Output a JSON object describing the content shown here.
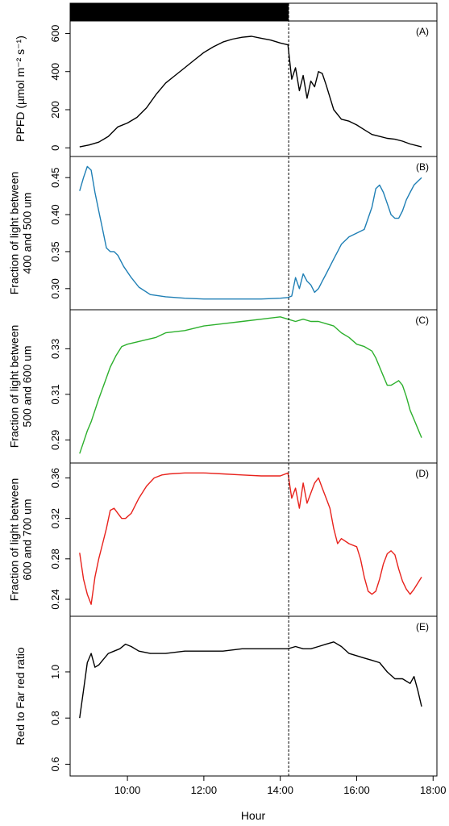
{
  "chart_data": {
    "type": "line",
    "xlabel": "Hour",
    "x_ticks": [
      "10:00",
      "12:00",
      "14:00",
      "16:00",
      "18:00"
    ],
    "x_tick_values": [
      10,
      12,
      14,
      16,
      18
    ],
    "xlim": [
      8.5,
      18.1
    ],
    "divider_x": 14.22,
    "top_bar": {
      "x_range": [
        8.5,
        14.22
      ],
      "colors": {
        "filled": "#000000",
        "empty": "#ffffff"
      }
    },
    "panels": [
      {
        "label": "(A)",
        "ylabel": "PPFD (µmol m⁻² s⁻¹)",
        "ylim": [
          -20,
          640
        ],
        "yticks": [
          0,
          200,
          400,
          600
        ],
        "ytick_labels": [
          "0",
          "200",
          "400",
          "600"
        ],
        "color": "#000000",
        "x": [
          8.75,
          9.0,
          9.25,
          9.5,
          9.75,
          10.0,
          10.25,
          10.5,
          10.75,
          11.0,
          11.25,
          11.5,
          11.75,
          12.0,
          12.25,
          12.5,
          12.75,
          13.0,
          13.25,
          13.5,
          13.75,
          14.0,
          14.2,
          14.3,
          14.4,
          14.5,
          14.6,
          14.7,
          14.8,
          14.9,
          15.0,
          15.1,
          15.2,
          15.4,
          15.6,
          15.8,
          16.0,
          16.2,
          16.4,
          16.6,
          16.8,
          17.0,
          17.2,
          17.4,
          17.7
        ],
        "y": [
          5,
          15,
          30,
          60,
          110,
          130,
          160,
          210,
          280,
          340,
          380,
          420,
          460,
          500,
          530,
          555,
          570,
          580,
          585,
          575,
          565,
          550,
          540,
          360,
          420,
          300,
          380,
          260,
          350,
          320,
          400,
          390,
          330,
          200,
          150,
          140,
          120,
          95,
          70,
          60,
          50,
          45,
          35,
          20,
          5
        ]
      },
      {
        "label": "(B)",
        "ylabel": "Fraction of light between\n400 and 500 um",
        "ylim": [
          0.278,
          0.472
        ],
        "yticks": [
          0.3,
          0.35,
          0.4,
          0.45
        ],
        "ytick_labels": [
          "0.30",
          "0.35",
          "0.40",
          "0.45"
        ],
        "color": "#1f7fb5",
        "x": [
          8.75,
          8.85,
          8.95,
          9.05,
          9.15,
          9.25,
          9.35,
          9.45,
          9.55,
          9.65,
          9.75,
          9.9,
          10.1,
          10.3,
          10.6,
          11.0,
          11.5,
          12.0,
          12.5,
          13.0,
          13.5,
          14.0,
          14.2,
          14.3,
          14.4,
          14.5,
          14.6,
          14.7,
          14.8,
          14.9,
          15.0,
          15.1,
          15.2,
          15.3,
          15.4,
          15.5,
          15.6,
          15.8,
          16.0,
          16.2,
          16.4,
          16.5,
          16.6,
          16.7,
          16.8,
          16.9,
          17.0,
          17.1,
          17.2,
          17.3,
          17.4,
          17.5,
          17.6,
          17.7
        ],
        "y": [
          0.432,
          0.45,
          0.465,
          0.46,
          0.43,
          0.405,
          0.38,
          0.355,
          0.35,
          0.35,
          0.345,
          0.33,
          0.315,
          0.302,
          0.292,
          0.289,
          0.287,
          0.286,
          0.286,
          0.286,
          0.286,
          0.287,
          0.288,
          0.29,
          0.315,
          0.3,
          0.32,
          0.31,
          0.305,
          0.295,
          0.3,
          0.31,
          0.32,
          0.33,
          0.34,
          0.35,
          0.36,
          0.37,
          0.375,
          0.38,
          0.41,
          0.435,
          0.44,
          0.43,
          0.415,
          0.4,
          0.395,
          0.395,
          0.405,
          0.42,
          0.43,
          0.44,
          0.445,
          0.45
        ]
      },
      {
        "label": "(C)",
        "ylabel": "Fraction of light between\n500 and 600 um",
        "ylim": [
          0.282,
          0.345
        ],
        "yticks": [
          0.29,
          0.31,
          0.33
        ],
        "ytick_labels": [
          "0.29",
          "0.31",
          "0.33"
        ],
        "color": "#2db02d",
        "x": [
          8.75,
          8.85,
          8.95,
          9.05,
          9.15,
          9.25,
          9.4,
          9.55,
          9.7,
          9.85,
          10.0,
          10.25,
          10.5,
          10.75,
          11.0,
          11.5,
          12.0,
          12.5,
          13.0,
          13.5,
          14.0,
          14.2,
          14.4,
          14.6,
          14.8,
          15.0,
          15.2,
          15.4,
          15.6,
          15.8,
          16.0,
          16.2,
          16.4,
          16.5,
          16.6,
          16.7,
          16.8,
          16.9,
          17.0,
          17.1,
          17.2,
          17.3,
          17.4,
          17.5,
          17.6,
          17.7
        ],
        "y": [
          0.284,
          0.289,
          0.294,
          0.298,
          0.303,
          0.308,
          0.315,
          0.322,
          0.327,
          0.331,
          0.332,
          0.333,
          0.334,
          0.335,
          0.337,
          0.338,
          0.34,
          0.341,
          0.342,
          0.343,
          0.344,
          0.343,
          0.342,
          0.343,
          0.342,
          0.342,
          0.341,
          0.34,
          0.337,
          0.335,
          0.332,
          0.331,
          0.329,
          0.326,
          0.322,
          0.318,
          0.314,
          0.314,
          0.315,
          0.316,
          0.314,
          0.309,
          0.303,
          0.299,
          0.295,
          0.291
        ]
      },
      {
        "label": "(D)",
        "ylabel": "Fraction of light between\n600 and 700 um",
        "ylim": [
          0.228,
          0.37
        ],
        "yticks": [
          0.24,
          0.28,
          0.32,
          0.36
        ],
        "ytick_labels": [
          "0.24",
          "0.28",
          "0.32",
          "0.36"
        ],
        "color": "#e8221c",
        "x": [
          8.75,
          8.85,
          8.95,
          9.05,
          9.15,
          9.25,
          9.35,
          9.45,
          9.55,
          9.65,
          9.75,
          9.85,
          9.95,
          10.1,
          10.3,
          10.5,
          10.7,
          10.9,
          11.1,
          11.5,
          12.0,
          12.5,
          13.0,
          13.5,
          14.0,
          14.2,
          14.3,
          14.4,
          14.5,
          14.6,
          14.7,
          14.8,
          14.9,
          15.0,
          15.1,
          15.2,
          15.3,
          15.4,
          15.5,
          15.6,
          15.8,
          16.0,
          16.1,
          16.2,
          16.3,
          16.4,
          16.5,
          16.6,
          16.7,
          16.8,
          16.9,
          17.0,
          17.1,
          17.2,
          17.3,
          17.4,
          17.5,
          17.6,
          17.7
        ],
        "y": [
          0.286,
          0.26,
          0.245,
          0.235,
          0.262,
          0.28,
          0.295,
          0.31,
          0.328,
          0.33,
          0.325,
          0.32,
          0.32,
          0.325,
          0.34,
          0.352,
          0.36,
          0.363,
          0.364,
          0.365,
          0.365,
          0.364,
          0.363,
          0.362,
          0.362,
          0.365,
          0.34,
          0.35,
          0.33,
          0.355,
          0.335,
          0.345,
          0.355,
          0.36,
          0.35,
          0.34,
          0.33,
          0.31,
          0.295,
          0.3,
          0.295,
          0.292,
          0.28,
          0.262,
          0.248,
          0.245,
          0.248,
          0.26,
          0.275,
          0.285,
          0.288,
          0.284,
          0.27,
          0.258,
          0.25,
          0.245,
          0.25,
          0.256,
          0.262
        ]
      },
      {
        "label": "(E)",
        "ylabel": "Red to Far red ratio",
        "ylim": [
          0.57,
          1.22
        ],
        "yticks": [
          0.6,
          0.8,
          1.0
        ],
        "ytick_labels": [
          "0.6",
          "0.8",
          "1.0"
        ],
        "color": "#000000",
        "x": [
          8.75,
          8.85,
          8.95,
          9.05,
          9.15,
          9.25,
          9.35,
          9.5,
          9.65,
          9.8,
          9.95,
          10.1,
          10.3,
          10.6,
          11.0,
          11.5,
          12.0,
          12.5,
          13.0,
          13.5,
          14.0,
          14.2,
          14.4,
          14.6,
          14.8,
          15.0,
          15.2,
          15.4,
          15.6,
          15.8,
          16.0,
          16.2,
          16.4,
          16.6,
          16.8,
          17.0,
          17.2,
          17.4,
          17.5,
          17.6,
          17.7
        ],
        "y": [
          0.8,
          0.92,
          1.04,
          1.08,
          1.02,
          1.03,
          1.05,
          1.08,
          1.09,
          1.1,
          1.12,
          1.11,
          1.09,
          1.08,
          1.08,
          1.09,
          1.09,
          1.09,
          1.1,
          1.1,
          1.1,
          1.1,
          1.11,
          1.1,
          1.1,
          1.11,
          1.12,
          1.13,
          1.11,
          1.08,
          1.07,
          1.06,
          1.05,
          1.04,
          1.0,
          0.97,
          0.97,
          0.95,
          0.98,
          0.92,
          0.85
        ]
      }
    ]
  }
}
